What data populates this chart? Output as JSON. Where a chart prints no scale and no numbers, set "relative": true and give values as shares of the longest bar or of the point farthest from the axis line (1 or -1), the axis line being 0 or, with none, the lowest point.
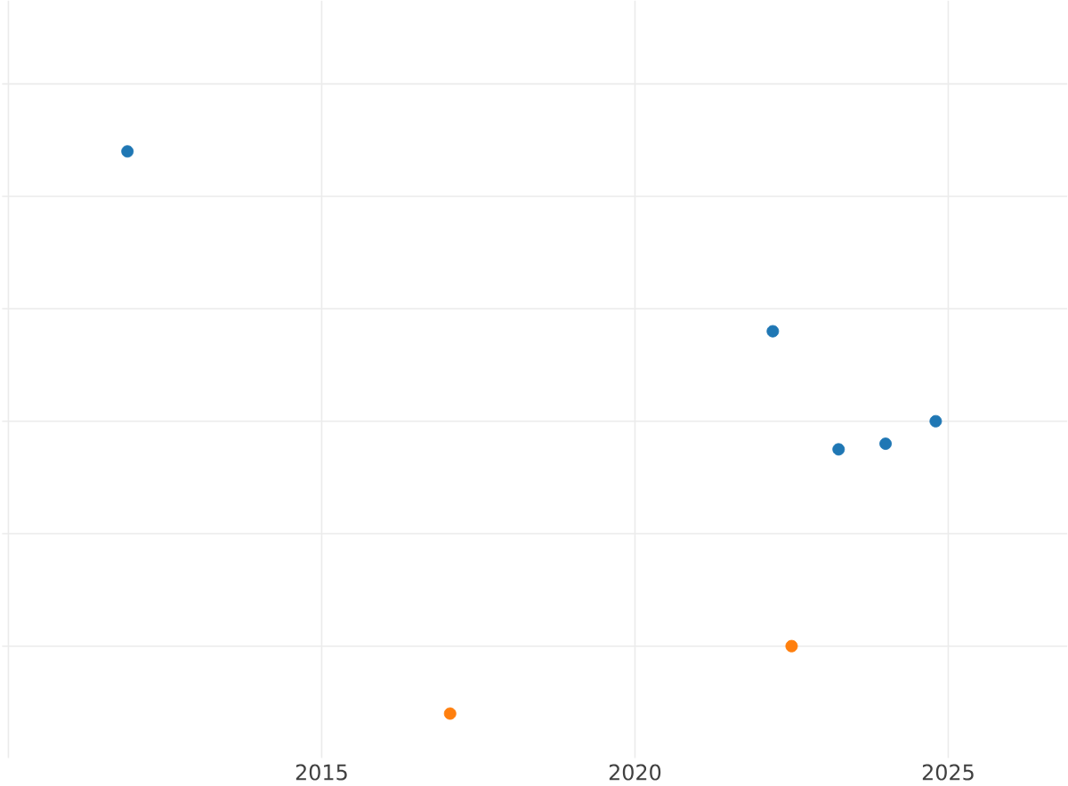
{
  "chart_data": {
    "type": "scatter",
    "relative": true,
    "xlim": [
      2009.9,
      2026.9
    ],
    "xticks": [
      {
        "value": 2010,
        "label": null
      },
      2015,
      2020,
      2025
    ],
    "grid": true,
    "marker": "circle",
    "tick_labels": "x",
    "series": [
      {
        "color": "#1f77b4",
        "x": [
          2011.9,
          2022.2,
          2023.25,
          2024.0,
          2024.8
        ],
        "values": [
          1,
          0.68,
          0.47,
          0.48,
          0.52
        ]
      },
      {
        "color": "#ff7f0e",
        "x": [
          2017.05,
          2022.5
        ],
        "values": [
          0,
          0.12
        ]
      }
    ]
  }
}
